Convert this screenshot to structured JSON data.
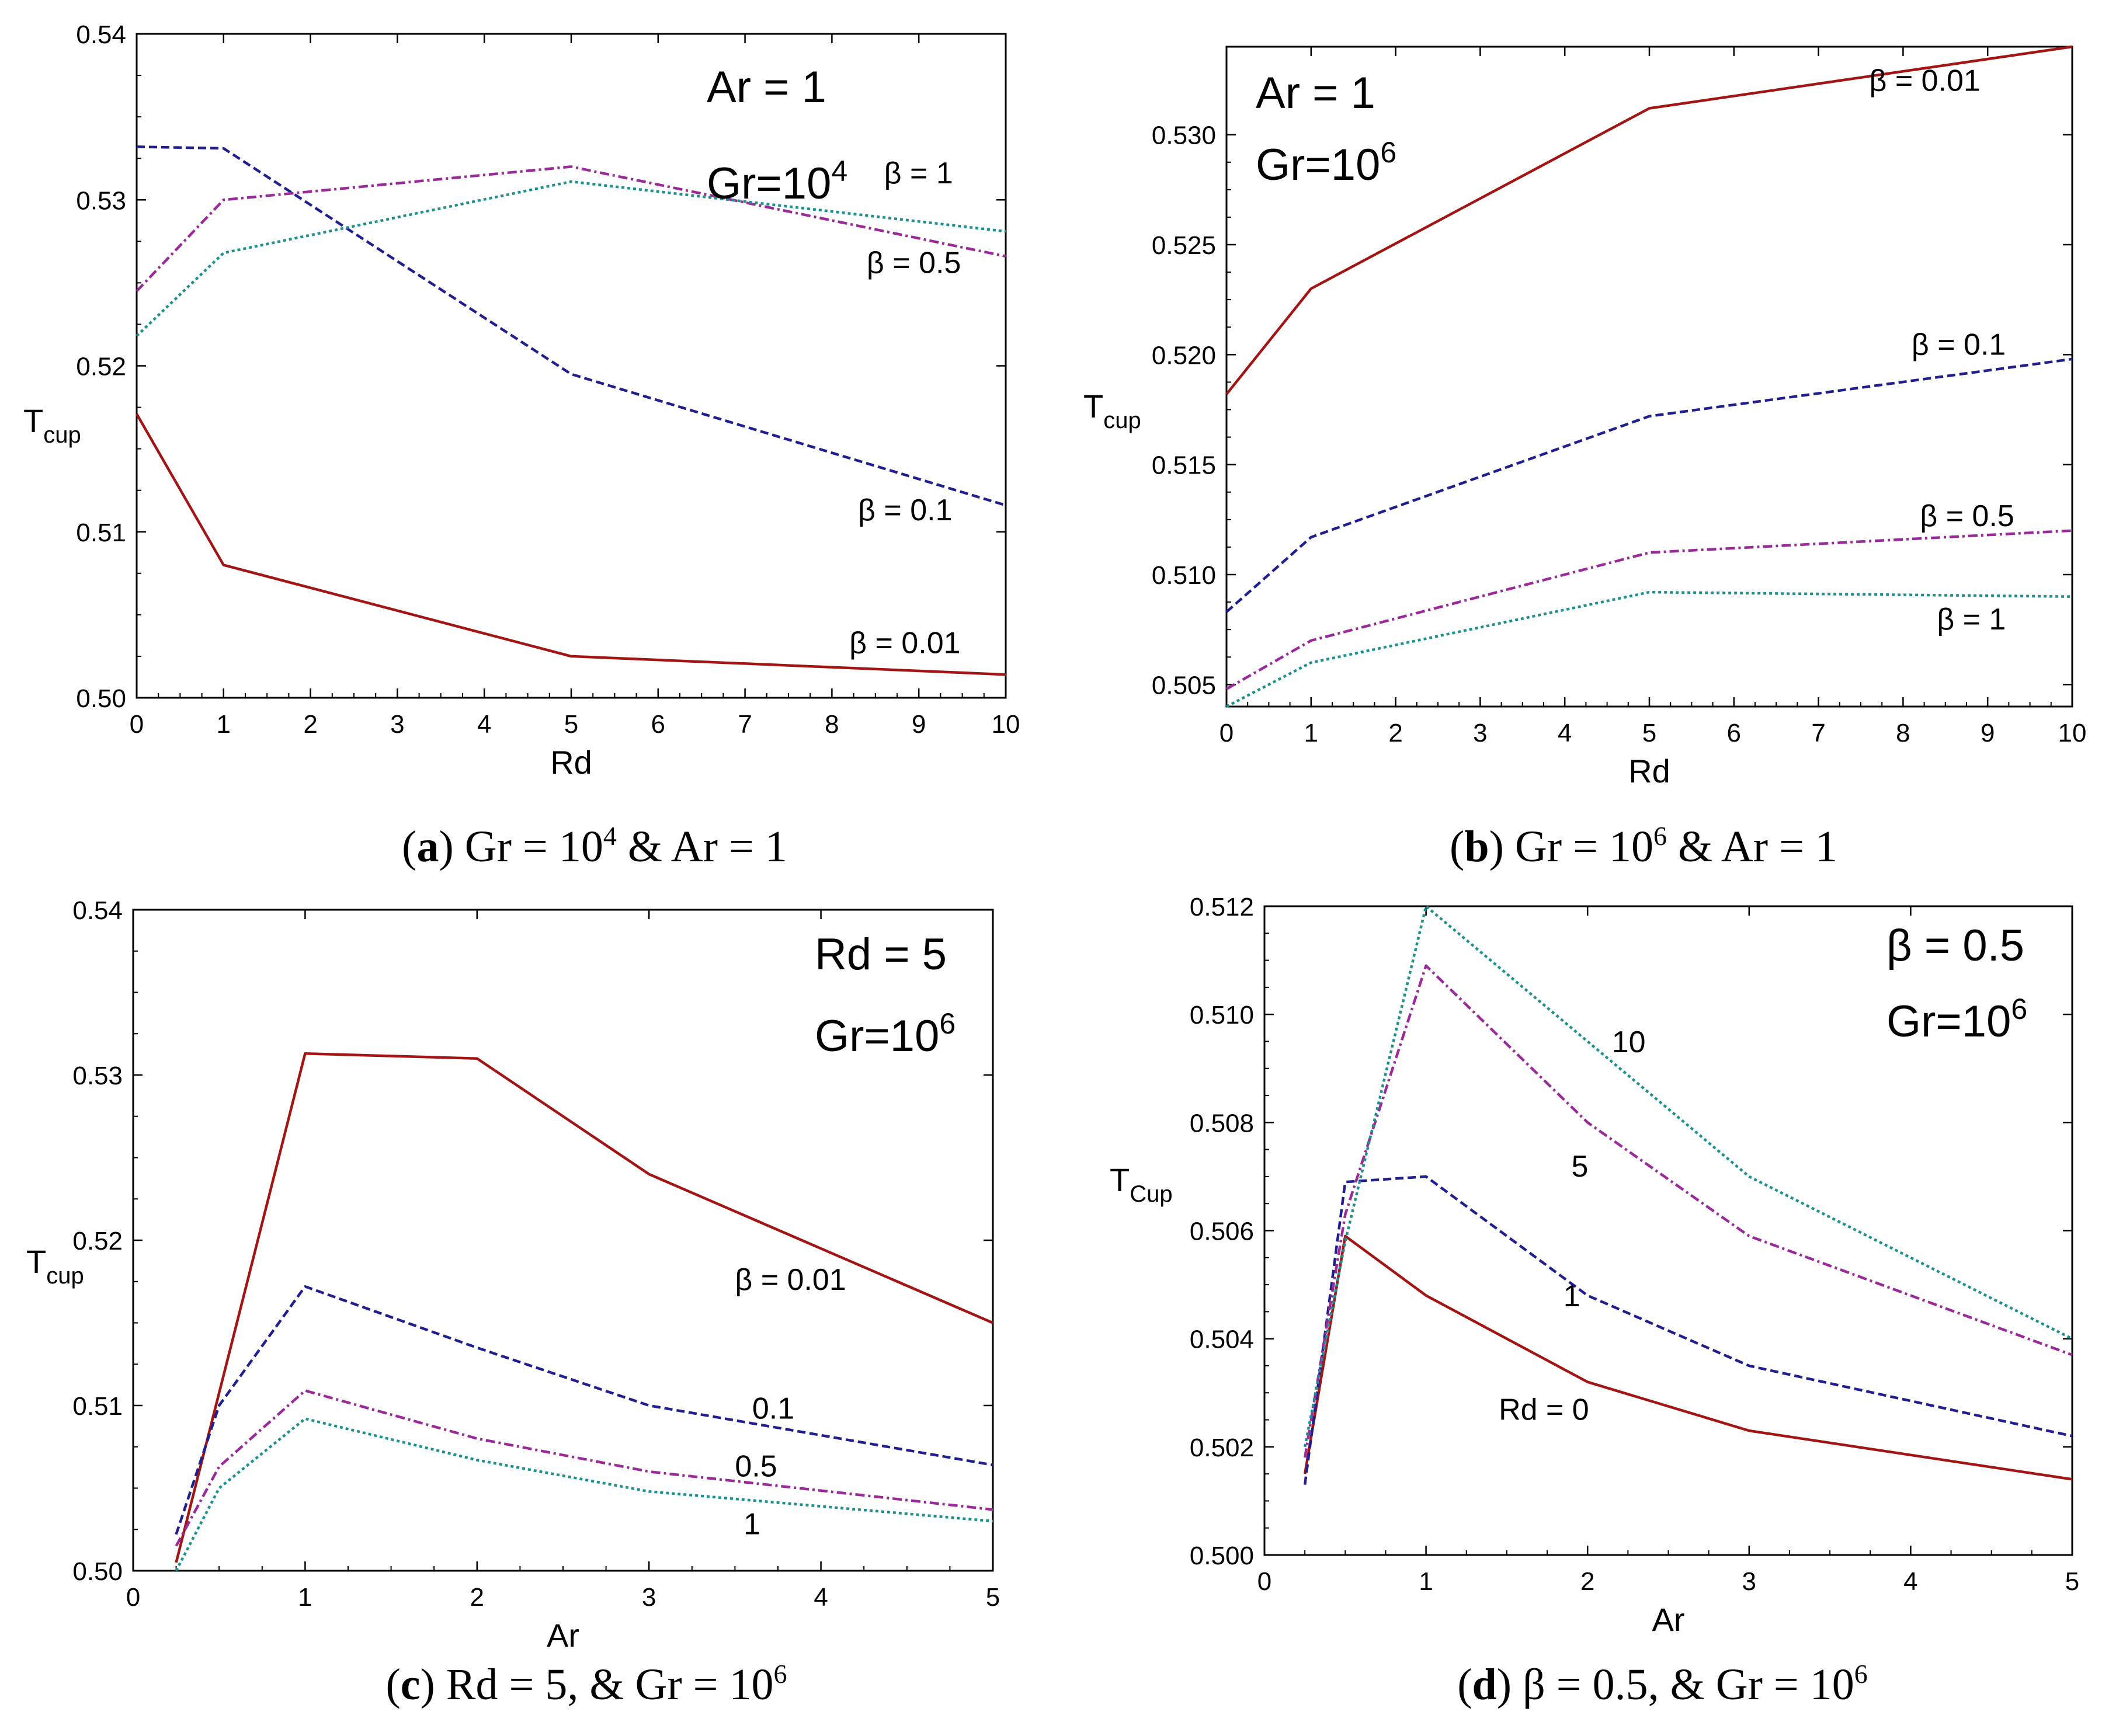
{
  "colors": {
    "beta_0_01": "#a31515",
    "beta_0_1": "#1f1f8f",
    "beta_0_5": "#9a2a9a",
    "beta_1": "#1d9090",
    "rd_0": "#a31515",
    "rd_1": "#1f1f8f",
    "rd_5": "#9a2a9a",
    "rd_10": "#1d9090"
  },
  "chart_data": [
    {
      "id": "a",
      "type": "line",
      "caption": {
        "letter": "a",
        "text": "Gr = 10",
        "sup": "4",
        "tail": " & Ar = 1"
      },
      "title_lines": [
        {
          "text": "Ar = 1"
        },
        {
          "text": "Gr=10",
          "sup": "4"
        }
      ],
      "xlabel": "Rd",
      "ylabel": {
        "base": "T",
        "sub": "cup"
      },
      "xlim": [
        0,
        10
      ],
      "ylim": [
        0.5,
        0.54
      ],
      "xticks": [
        "0",
        "1",
        "2",
        "3",
        "4",
        "5",
        "6",
        "7",
        "8",
        "9",
        "10"
      ],
      "yticks": [
        "0.50",
        "0.51",
        "0.52",
        "0.53",
        "0.54"
      ],
      "series": [
        {
          "name": "β = 0.01",
          "color_key": "beta_0_01",
          "dash": "",
          "x": [
            0,
            1,
            5,
            10
          ],
          "y": [
            0.5171,
            0.508,
            0.5025,
            0.5014
          ]
        },
        {
          "name": "β = 0.1",
          "color_key": "beta_0_1",
          "dash": "14,7",
          "x": [
            0,
            1,
            5,
            10
          ],
          "y": [
            0.5332,
            0.5331,
            0.5195,
            0.5116
          ]
        },
        {
          "name": "β = 0.5",
          "color_key": "beta_0_5",
          "dash": "16,6,4,6",
          "x": [
            0,
            1,
            5,
            10
          ],
          "y": [
            0.5245,
            0.53,
            0.532,
            0.5266
          ]
        },
        {
          "name": "β = 1",
          "color_key": "beta_1",
          "dash": "5,5",
          "x": [
            0,
            1,
            5,
            10
          ],
          "y": [
            0.5218,
            0.5268,
            0.5311,
            0.5281
          ]
        }
      ],
      "annotations": [
        {
          "text": "β = 1",
          "x": 8.6,
          "y": 0.531
        },
        {
          "text": "β = 0.5",
          "x": 8.4,
          "y": 0.5256
        },
        {
          "text": "β = 0.1",
          "x": 8.3,
          "y": 0.5107
        },
        {
          "text": "β = 0.01",
          "x": 8.2,
          "y": 0.5027
        }
      ]
    },
    {
      "id": "b",
      "type": "line",
      "caption": {
        "letter": "b",
        "text": "Gr = 10",
        "sup": "6",
        "tail": " & Ar = 1"
      },
      "title_lines": [
        {
          "text": "Ar = 1"
        },
        {
          "text": "Gr=10",
          "sup": "6"
        }
      ],
      "xlabel": "Rd",
      "ylabel": {
        "base": "T",
        "sub": "cup"
      },
      "xlim": [
        0,
        10
      ],
      "ylim": [
        0.504,
        0.534
      ],
      "xticks": [
        "0",
        "1",
        "2",
        "3",
        "4",
        "5",
        "6",
        "7",
        "8",
        "9",
        "10"
      ],
      "yticks": [
        "0.505",
        "0.510",
        "0.515",
        "0.520",
        "0.525",
        "0.530"
      ],
      "series": [
        {
          "name": "β = 0.01",
          "color_key": "beta_0_01",
          "dash": "",
          "x": [
            0,
            1,
            5,
            10
          ],
          "y": [
            0.5182,
            0.523,
            0.5312,
            0.534
          ]
        },
        {
          "name": "β = 0.1",
          "color_key": "beta_0_1",
          "dash": "14,7",
          "x": [
            0,
            1,
            5,
            10
          ],
          "y": [
            0.5083,
            0.5117,
            0.5172,
            0.5198
          ]
        },
        {
          "name": "β = 0.5",
          "color_key": "beta_0_5",
          "dash": "16,6,4,6",
          "x": [
            0,
            1,
            5,
            10
          ],
          "y": [
            0.5048,
            0.507,
            0.511,
            0.512
          ]
        },
        {
          "name": "β = 1",
          "color_key": "beta_1",
          "dash": "5,5",
          "x": [
            0,
            1,
            5,
            10
          ],
          "y": [
            0.504,
            0.506,
            0.5092,
            0.509
          ]
        }
      ],
      "annotations": [
        {
          "text": "β = 0.01",
          "x": 7.6,
          "y": 0.532
        },
        {
          "text": "β = 0.1",
          "x": 8.1,
          "y": 0.52
        },
        {
          "text": "β = 0.5",
          "x": 8.2,
          "y": 0.5122
        },
        {
          "text": "β = 1",
          "x": 8.4,
          "y": 0.5075
        }
      ]
    },
    {
      "id": "c",
      "type": "line",
      "caption": {
        "letter": "c",
        "text": "Rd = 5, & Gr = 10",
        "sup": "6",
        "tail": ""
      },
      "title_lines": [
        {
          "text": "Rd = 5"
        },
        {
          "text": "Gr=10",
          "sup": "6"
        }
      ],
      "xlabel": "Ar",
      "ylabel": {
        "base": "T",
        "sub": "cup"
      },
      "xlim": [
        0,
        5
      ],
      "ylim": [
        0.5,
        0.54
      ],
      "xticks": [
        "0",
        "1",
        "2",
        "3",
        "4",
        "5"
      ],
      "yticks": [
        "0.50",
        "0.51",
        "0.52",
        "0.53",
        "0.54"
      ],
      "series": [
        {
          "name": "β = 0.01",
          "color_key": "beta_0_01",
          "dash": "",
          "x": [
            0.25,
            1,
            2,
            3,
            5
          ],
          "y": [
            0.5005,
            0.5313,
            0.531,
            0.524,
            0.515
          ]
        },
        {
          "name": "0.1",
          "color_key": "beta_0_1",
          "dash": "14,7",
          "x": [
            0.25,
            0.5,
            1,
            2,
            3,
            5
          ],
          "y": [
            0.5022,
            0.51,
            0.5172,
            0.5135,
            0.51,
            0.5064
          ]
        },
        {
          "name": "0.5",
          "color_key": "beta_0_5",
          "dash": "16,6,4,6",
          "x": [
            0.25,
            0.5,
            1,
            2,
            3,
            5
          ],
          "y": [
            0.5015,
            0.5063,
            0.5109,
            0.508,
            0.506,
            0.5037
          ]
        },
        {
          "name": "1",
          "color_key": "beta_1",
          "dash": "5,5",
          "x": [
            0.25,
            0.5,
            1,
            2,
            3,
            5
          ],
          "y": [
            0.5,
            0.505,
            0.5092,
            0.5067,
            0.5048,
            0.503
          ]
        }
      ],
      "annotations": [
        {
          "text": "β = 0.01",
          "x": 3.5,
          "y": 0.517
        },
        {
          "text": "0.1",
          "x": 3.6,
          "y": 0.5092
        },
        {
          "text": "0.5",
          "x": 3.5,
          "y": 0.5057
        },
        {
          "text": "1",
          "x": 3.55,
          "y": 0.5022
        }
      ]
    },
    {
      "id": "d",
      "type": "line",
      "caption": {
        "letter": "d",
        "text": "β = 0.5, & Gr = 10",
        "sup": "6",
        "tail": ""
      },
      "title_lines": [
        {
          "text": "β = 0.5"
        },
        {
          "text": "Gr=10",
          "sup": "6"
        }
      ],
      "xlabel": "Ar",
      "ylabel": {
        "base": "T",
        "sub": "Cup"
      },
      "xlim": [
        0,
        5
      ],
      "ylim": [
        0.5,
        0.512
      ],
      "xticks": [
        "0",
        "1",
        "2",
        "3",
        "4",
        "5"
      ],
      "yticks": [
        "0.500",
        "0.502",
        "0.504",
        "0.506",
        "0.508",
        "0.510",
        "0.512"
      ],
      "series": [
        {
          "name": "Rd = 0",
          "color_key": "rd_0",
          "dash": "",
          "x": [
            0.25,
            0.5,
            1,
            2,
            3,
            5
          ],
          "y": [
            0.5015,
            0.5059,
            0.5048,
            0.5032,
            0.5023,
            0.5014
          ]
        },
        {
          "name": "1",
          "color_key": "rd_1",
          "dash": "14,7",
          "x": [
            0.25,
            0.5,
            1,
            2,
            3,
            5
          ],
          "y": [
            0.5013,
            0.5069,
            0.507,
            0.5048,
            0.5035,
            0.5022
          ]
        },
        {
          "name": "5",
          "color_key": "rd_5",
          "dash": "16,6,4,6",
          "x": [
            0.25,
            0.5,
            1,
            2,
            3,
            5
          ],
          "y": [
            0.5018,
            0.5063,
            0.5109,
            0.508,
            0.5059,
            0.5037
          ]
        },
        {
          "name": "10",
          "color_key": "rd_10",
          "dash": "5,5",
          "x": [
            0.25,
            0.5,
            1,
            2,
            3,
            5
          ],
          "y": [
            0.502,
            0.5058,
            0.512,
            0.5095,
            0.507,
            0.504
          ]
        }
      ],
      "annotations": [
        {
          "text": "10",
          "x": 2.15,
          "y": 0.5093
        },
        {
          "text": "5",
          "x": 1.9,
          "y": 0.507
        },
        {
          "text": "1",
          "x": 1.85,
          "y": 0.5046
        },
        {
          "text": "Rd = 0",
          "x": 1.45,
          "y": 0.5025
        }
      ]
    }
  ]
}
